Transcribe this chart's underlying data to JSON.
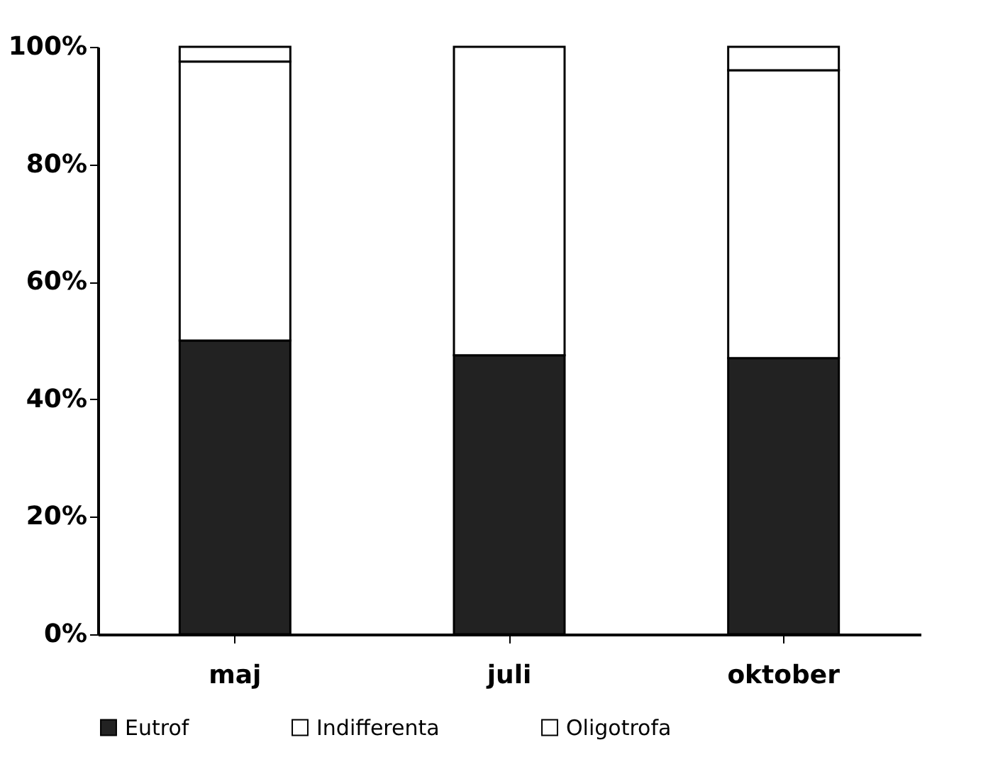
{
  "chart_data": {
    "type": "bar",
    "stacked": true,
    "categories": [
      "maj",
      "juli",
      "oktober"
    ],
    "series": [
      {
        "name": "Eutrof",
        "color": "#222222",
        "values": [
          50,
          47.5,
          47
        ]
      },
      {
        "name": "Indifferenta",
        "color": "#ffffff",
        "values": [
          47.5,
          52.5,
          49
        ]
      },
      {
        "name": "Oligotrofa",
        "color": "#ffffff",
        "values": [
          2.5,
          null,
          4
        ]
      }
    ],
    "ylim": [
      0,
      100
    ],
    "yticks": [
      {
        "value": 0,
        "label": "0%"
      },
      {
        "value": 20,
        "label": "20%"
      },
      {
        "value": 40,
        "label": "40%"
      },
      {
        "value": 60,
        "label": "60%"
      },
      {
        "value": 80,
        "label": "80%"
      },
      {
        "value": 100,
        "label": "100%"
      }
    ],
    "grid": false,
    "legend": "bottom"
  }
}
